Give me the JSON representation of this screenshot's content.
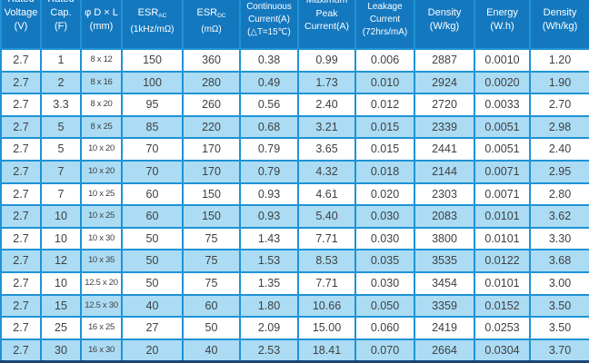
{
  "header": {
    "columns": [
      {
        "id": "rated-voltage",
        "lines": [
          "Rated",
          "Voltage",
          "(V)"
        ]
      },
      {
        "id": "rated-capacitance",
        "lines": [
          "Rated",
          "Cap.",
          "(F)"
        ]
      },
      {
        "id": "dimensions",
        "lines": [
          "φ D × L",
          "(mm)"
        ]
      },
      {
        "id": "esr-ac",
        "lines": [
          {
            "text": "ESR",
            "sub": "AC"
          },
          "(1kHz/mΩ)"
        ]
      },
      {
        "id": "esr-dc",
        "lines": [
          {
            "text": "ESR",
            "sub": "DC"
          },
          "(mΩ)"
        ]
      },
      {
        "id": "continuous-current",
        "lines": [
          "Continuous",
          "Current(A)",
          "(△T=15℃)"
        ]
      },
      {
        "id": "max-peak-current",
        "lines": [
          "Maximum",
          "Peak",
          "Current(A)"
        ]
      },
      {
        "id": "leakage-current",
        "lines": [
          "Leakage",
          "Current",
          "(72hrs/mA)"
        ]
      },
      {
        "id": "power-density",
        "lines": [
          "Density",
          "(W/kg)"
        ]
      },
      {
        "id": "energy",
        "lines": [
          "Energy",
          "(W.h)"
        ]
      },
      {
        "id": "energy-density",
        "lines": [
          "Density",
          "(Wh/kg)"
        ]
      }
    ]
  },
  "rows": [
    [
      "2.7",
      "1",
      "8 x 12",
      "150",
      "360",
      "0.38",
      "0.99",
      "0.006",
      "2887",
      "0.0010",
      "1.20"
    ],
    [
      "2.7",
      "2",
      "8 x 16",
      "100",
      "280",
      "0.49",
      "1.73",
      "0.010",
      "2924",
      "0.0020",
      "1.90"
    ],
    [
      "2.7",
      "3.3",
      "8 x 20",
      "95",
      "260",
      "0.56",
      "2.40",
      "0.012",
      "2720",
      "0.0033",
      "2.70"
    ],
    [
      "2.7",
      "5",
      "8 x 25",
      "85",
      "220",
      "0.68",
      "3.21",
      "0.015",
      "2339",
      "0.0051",
      "2.98"
    ],
    [
      "2.7",
      "5",
      "10 x 20",
      "70",
      "170",
      "0.79",
      "3.65",
      "0.015",
      "2441",
      "0.0051",
      "2.40"
    ],
    [
      "2.7",
      "7",
      "10 x 20",
      "70",
      "170",
      "0.79",
      "4.32",
      "0.018",
      "2144",
      "0.0071",
      "2.95"
    ],
    [
      "2.7",
      "7",
      "10 x 25",
      "60",
      "150",
      "0.93",
      "4.61",
      "0.020",
      "2303",
      "0.0071",
      "2.80"
    ],
    [
      "2.7",
      "10",
      "10 x 25",
      "60",
      "150",
      "0.93",
      "5.40",
      "0.030",
      "2083",
      "0.0101",
      "3.62"
    ],
    [
      "2.7",
      "10",
      "10 x 30",
      "50",
      "75",
      "1.43",
      "7.71",
      "0.030",
      "3800",
      "0.0101",
      "3.30"
    ],
    [
      "2.7",
      "12",
      "10 x 35",
      "50",
      "75",
      "1.53",
      "8.53",
      "0.035",
      "3535",
      "0.0122",
      "3.68"
    ],
    [
      "2.7",
      "10",
      "12.5 x 20",
      "50",
      "75",
      "1.35",
      "7.71",
      "0.030",
      "3454",
      "0.0101",
      "3.00"
    ],
    [
      "2.7",
      "15",
      "12.5 x 30",
      "40",
      "60",
      "1.80",
      "10.66",
      "0.050",
      "3359",
      "0.0152",
      "3.50"
    ],
    [
      "2.7",
      "25",
      "16 x 25",
      "27",
      "50",
      "2.09",
      "15.00",
      "0.060",
      "2419",
      "0.0253",
      "3.50"
    ],
    [
      "2.7",
      "30",
      "16 x 30",
      "20",
      "40",
      "2.53",
      "18.41",
      "0.070",
      "2664",
      "0.0304",
      "3.70"
    ]
  ],
  "colors": {
    "header_bg": "#1478bf",
    "row_alt_bg": "#abdcf4",
    "border": "#1e93d6",
    "bottom_edge": "#1c4677",
    "text": "#3f3f3f",
    "header_text": "#ffffff"
  }
}
